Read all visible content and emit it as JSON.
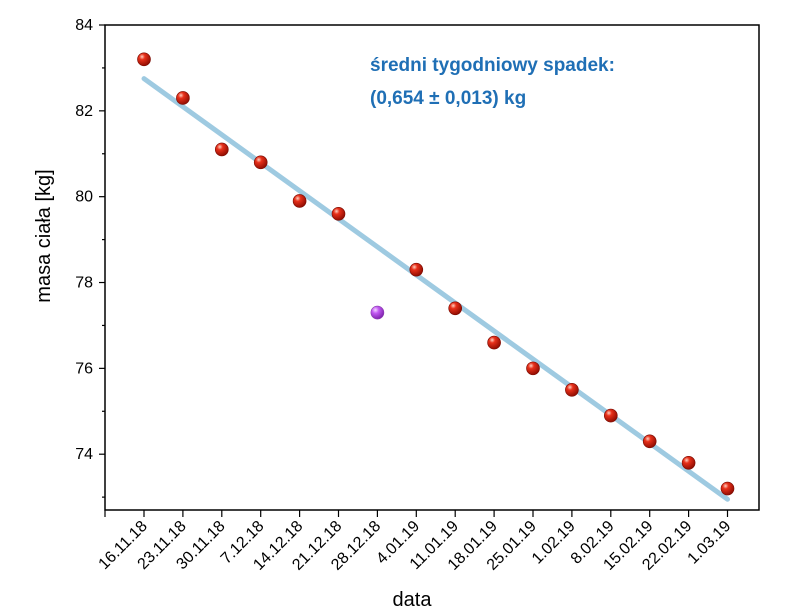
{
  "chart_data": {
    "type": "scatter",
    "title": "",
    "xlabel": "data",
    "ylabel": "masa ciała [kg]",
    "categories": [
      "16.11.18",
      "23.11.18",
      "30.11.18",
      "7.12.18",
      "14.12.18",
      "21.12.18",
      "28.12.18",
      "4.01.19",
      "11.01.19",
      "18.01.19",
      "25.01.19",
      "1.02.19",
      "8.02.19",
      "15.02.19",
      "22.02.19",
      "1.03.19"
    ],
    "values": [
      83.2,
      82.3,
      81.1,
      80.8,
      79.9,
      79.6,
      77.3,
      78.3,
      77.4,
      76.6,
      76.0,
      75.5,
      74.9,
      74.3,
      73.8,
      73.2
    ],
    "outlier_index": 6,
    "fit_line": {
      "y_start": 82.75,
      "y_end": 72.95
    },
    "ylim": [
      72.7,
      84.0
    ],
    "yticks": [
      74,
      76,
      78,
      80,
      82,
      84
    ],
    "annotation": [
      "średni tygodniowy spadek:",
      "(0,654 ± 0,013) kg"
    ],
    "colors": {
      "points": "#cc1100",
      "outlier": "#b040e0",
      "fit_line": "#9ecae1",
      "annotation": "#1f6fb5",
      "axes": "#000000"
    },
    "grid": false,
    "legend": "none"
  }
}
